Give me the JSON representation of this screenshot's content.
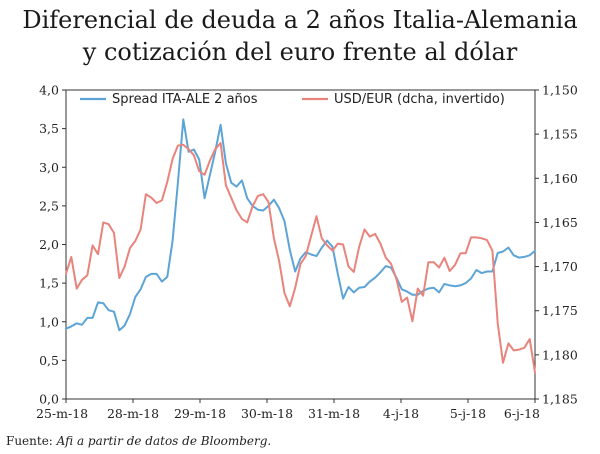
{
  "title_line1": "Diferencial de deuda a 2 años Italia-Alemania",
  "title_line2": "y cotización del euro frente al dólar",
  "source_prefix": "Fuente: ",
  "source_text": "Afi a partir de datos de Bloomberg.",
  "chart_data": {
    "type": "line",
    "x_ticks": [
      "25-m-18",
      "28-m-18",
      "29-m-18",
      "30-m-18",
      "31-m-18",
      "4-j-18",
      "5-j-18",
      "6-j-18"
    ],
    "left_axis": {
      "ylim": [
        0,
        4.0
      ],
      "ticks": [
        "0,0",
        "0,5",
        "1,0",
        "1,5",
        "2,0",
        "2,5",
        "3,0",
        "3,5",
        "4,0"
      ]
    },
    "right_axis": {
      "ylim": [
        1.15,
        1.185
      ],
      "inverted": true,
      "ticks": [
        "1,150",
        "1,155",
        "1,160",
        "1,165",
        "1,170",
        "1,175",
        "1,180",
        "1,185"
      ]
    },
    "legend_position": "top",
    "series": [
      {
        "name": "Spread ITA-ALE 2 años",
        "axis": "left",
        "color": "#5da4d6",
        "values": [
          0.91,
          0.94,
          0.98,
          0.96,
          1.05,
          1.05,
          1.25,
          1.24,
          1.15,
          1.13,
          0.89,
          0.95,
          1.1,
          1.32,
          1.42,
          1.58,
          1.62,
          1.62,
          1.52,
          1.58,
          2.05,
          2.8,
          3.62,
          3.2,
          3.23,
          3.1,
          2.6,
          2.9,
          3.2,
          3.55,
          3.05,
          2.8,
          2.75,
          2.83,
          2.6,
          2.5,
          2.45,
          2.44,
          2.5,
          2.58,
          2.47,
          2.3,
          1.93,
          1.65,
          1.82,
          1.9,
          1.87,
          1.85,
          1.96,
          2.05,
          1.97,
          1.62,
          1.3,
          1.45,
          1.38,
          1.44,
          1.45,
          1.52,
          1.57,
          1.64,
          1.72,
          1.7,
          1.57,
          1.42,
          1.39,
          1.35,
          1.35,
          1.4,
          1.43,
          1.44,
          1.38,
          1.49,
          1.47,
          1.46,
          1.47,
          1.5,
          1.56,
          1.67,
          1.63,
          1.65,
          1.65,
          1.89,
          1.91,
          1.96,
          1.86,
          1.83,
          1.84,
          1.86,
          1.92
        ]
      },
      {
        "name": "USD/EUR (dcha, invertido)",
        "axis": "right",
        "color": "#e8847c",
        "values": [
          1.1708,
          1.1689,
          1.1725,
          1.1715,
          1.171,
          1.1676,
          1.1686,
          1.165,
          1.1652,
          1.1662,
          1.1713,
          1.17,
          1.1679,
          1.1671,
          1.1658,
          1.1618,
          1.1622,
          1.1628,
          1.1625,
          1.1604,
          1.1578,
          1.1563,
          1.1562,
          1.1567,
          1.1574,
          1.1592,
          1.1596,
          1.158,
          1.1567,
          1.156,
          1.1608,
          1.1622,
          1.1636,
          1.1646,
          1.165,
          1.1632,
          1.162,
          1.1618,
          1.1627,
          1.1668,
          1.1694,
          1.173,
          1.1745,
          1.1724,
          1.1697,
          1.1688,
          1.1665,
          1.1643,
          1.1668,
          1.1676,
          1.1682,
          1.1674,
          1.1675,
          1.17,
          1.1706,
          1.1678,
          1.1658,
          1.1666,
          1.1663,
          1.1674,
          1.169,
          1.1697,
          1.1714,
          1.174,
          1.1735,
          1.1762,
          1.1725,
          1.1733,
          1.1695,
          1.1695,
          1.1701,
          1.169,
          1.1705,
          1.1698,
          1.1685,
          1.1685,
          1.1667,
          1.1667,
          1.1668,
          1.167,
          1.1682,
          1.1764,
          1.1809,
          1.1787,
          1.1795,
          1.1794,
          1.1792,
          1.1782,
          1.182
        ]
      }
    ]
  }
}
